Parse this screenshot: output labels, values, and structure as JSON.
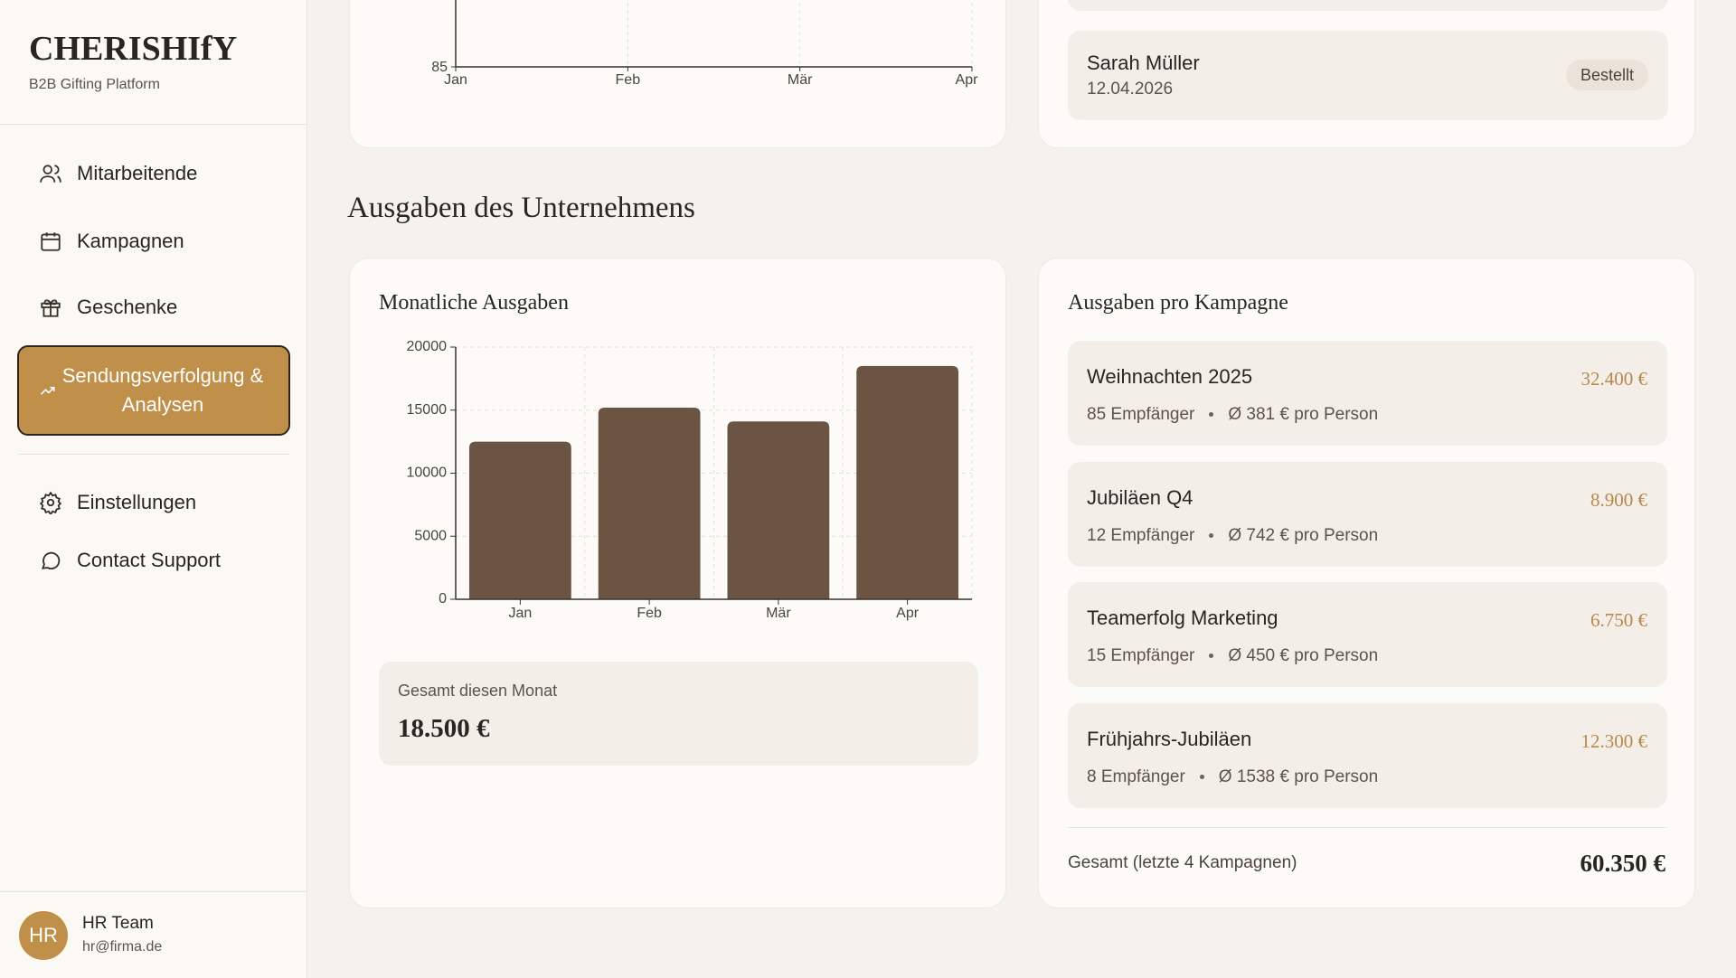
{
  "sidebar": {
    "brand": "CHERISHIfY",
    "tagline": "B2B Gifting Platform",
    "nav": [
      "Mitarbeitende",
      "Kampagnen",
      "Geschenke",
      "Sendungsverfolgung & Analysen",
      "Einstellungen",
      "Contact Support"
    ],
    "user": {
      "initials": "HR",
      "name": "HR Team",
      "email": "hr@firma.de"
    }
  },
  "top_chart": {
    "type": "line",
    "categories": [
      "Jan",
      "Feb",
      "Mär",
      "Apr"
    ],
    "yticks": [
      85
    ]
  },
  "recent_orders": {
    "items": [
      {
        "name": "Sarah Müller",
        "date": "12.04.2026",
        "status": "Bestellt"
      }
    ]
  },
  "section_title": "Ausgaben des Unternehmens",
  "monthly": {
    "title": "Monatliche Ausgaben",
    "chart_data": {
      "type": "bar",
      "categories": [
        "Jan",
        "Feb",
        "Mär",
        "Apr"
      ],
      "values": [
        12500,
        15200,
        14100,
        18500
      ],
      "color": "#6b5443",
      "ylim": [
        0,
        20000
      ],
      "yticks": [
        0,
        5000,
        10000,
        15000,
        20000
      ],
      "grid": true
    },
    "total_label": "Gesamt diesen Monat",
    "total": "18.500 €"
  },
  "campaigns": {
    "title": "Ausgaben pro Kampagne",
    "items": [
      {
        "name": "Weihnachten 2025",
        "amount": "32.400 €",
        "recipients": "85 Empfänger",
        "per_person": "Ø 381 € pro Person"
      },
      {
        "name": "Jubiläen Q4",
        "amount": "8.900 €",
        "recipients": "12 Empfänger",
        "per_person": "Ø 742 € pro Person"
      },
      {
        "name": "Teamerfolg Marketing",
        "amount": "6.750 €",
        "recipients": "15 Empfänger",
        "per_person": "Ø 450 € pro Person"
      },
      {
        "name": "Frühjahrs-Jubiläen",
        "amount": "12.300 €",
        "recipients": "8 Empfänger",
        "per_person": "Ø 1538 € pro Person"
      }
    ],
    "total_label": "Gesamt (letzte 4 Kampagnen)",
    "total": "60.350 €"
  }
}
